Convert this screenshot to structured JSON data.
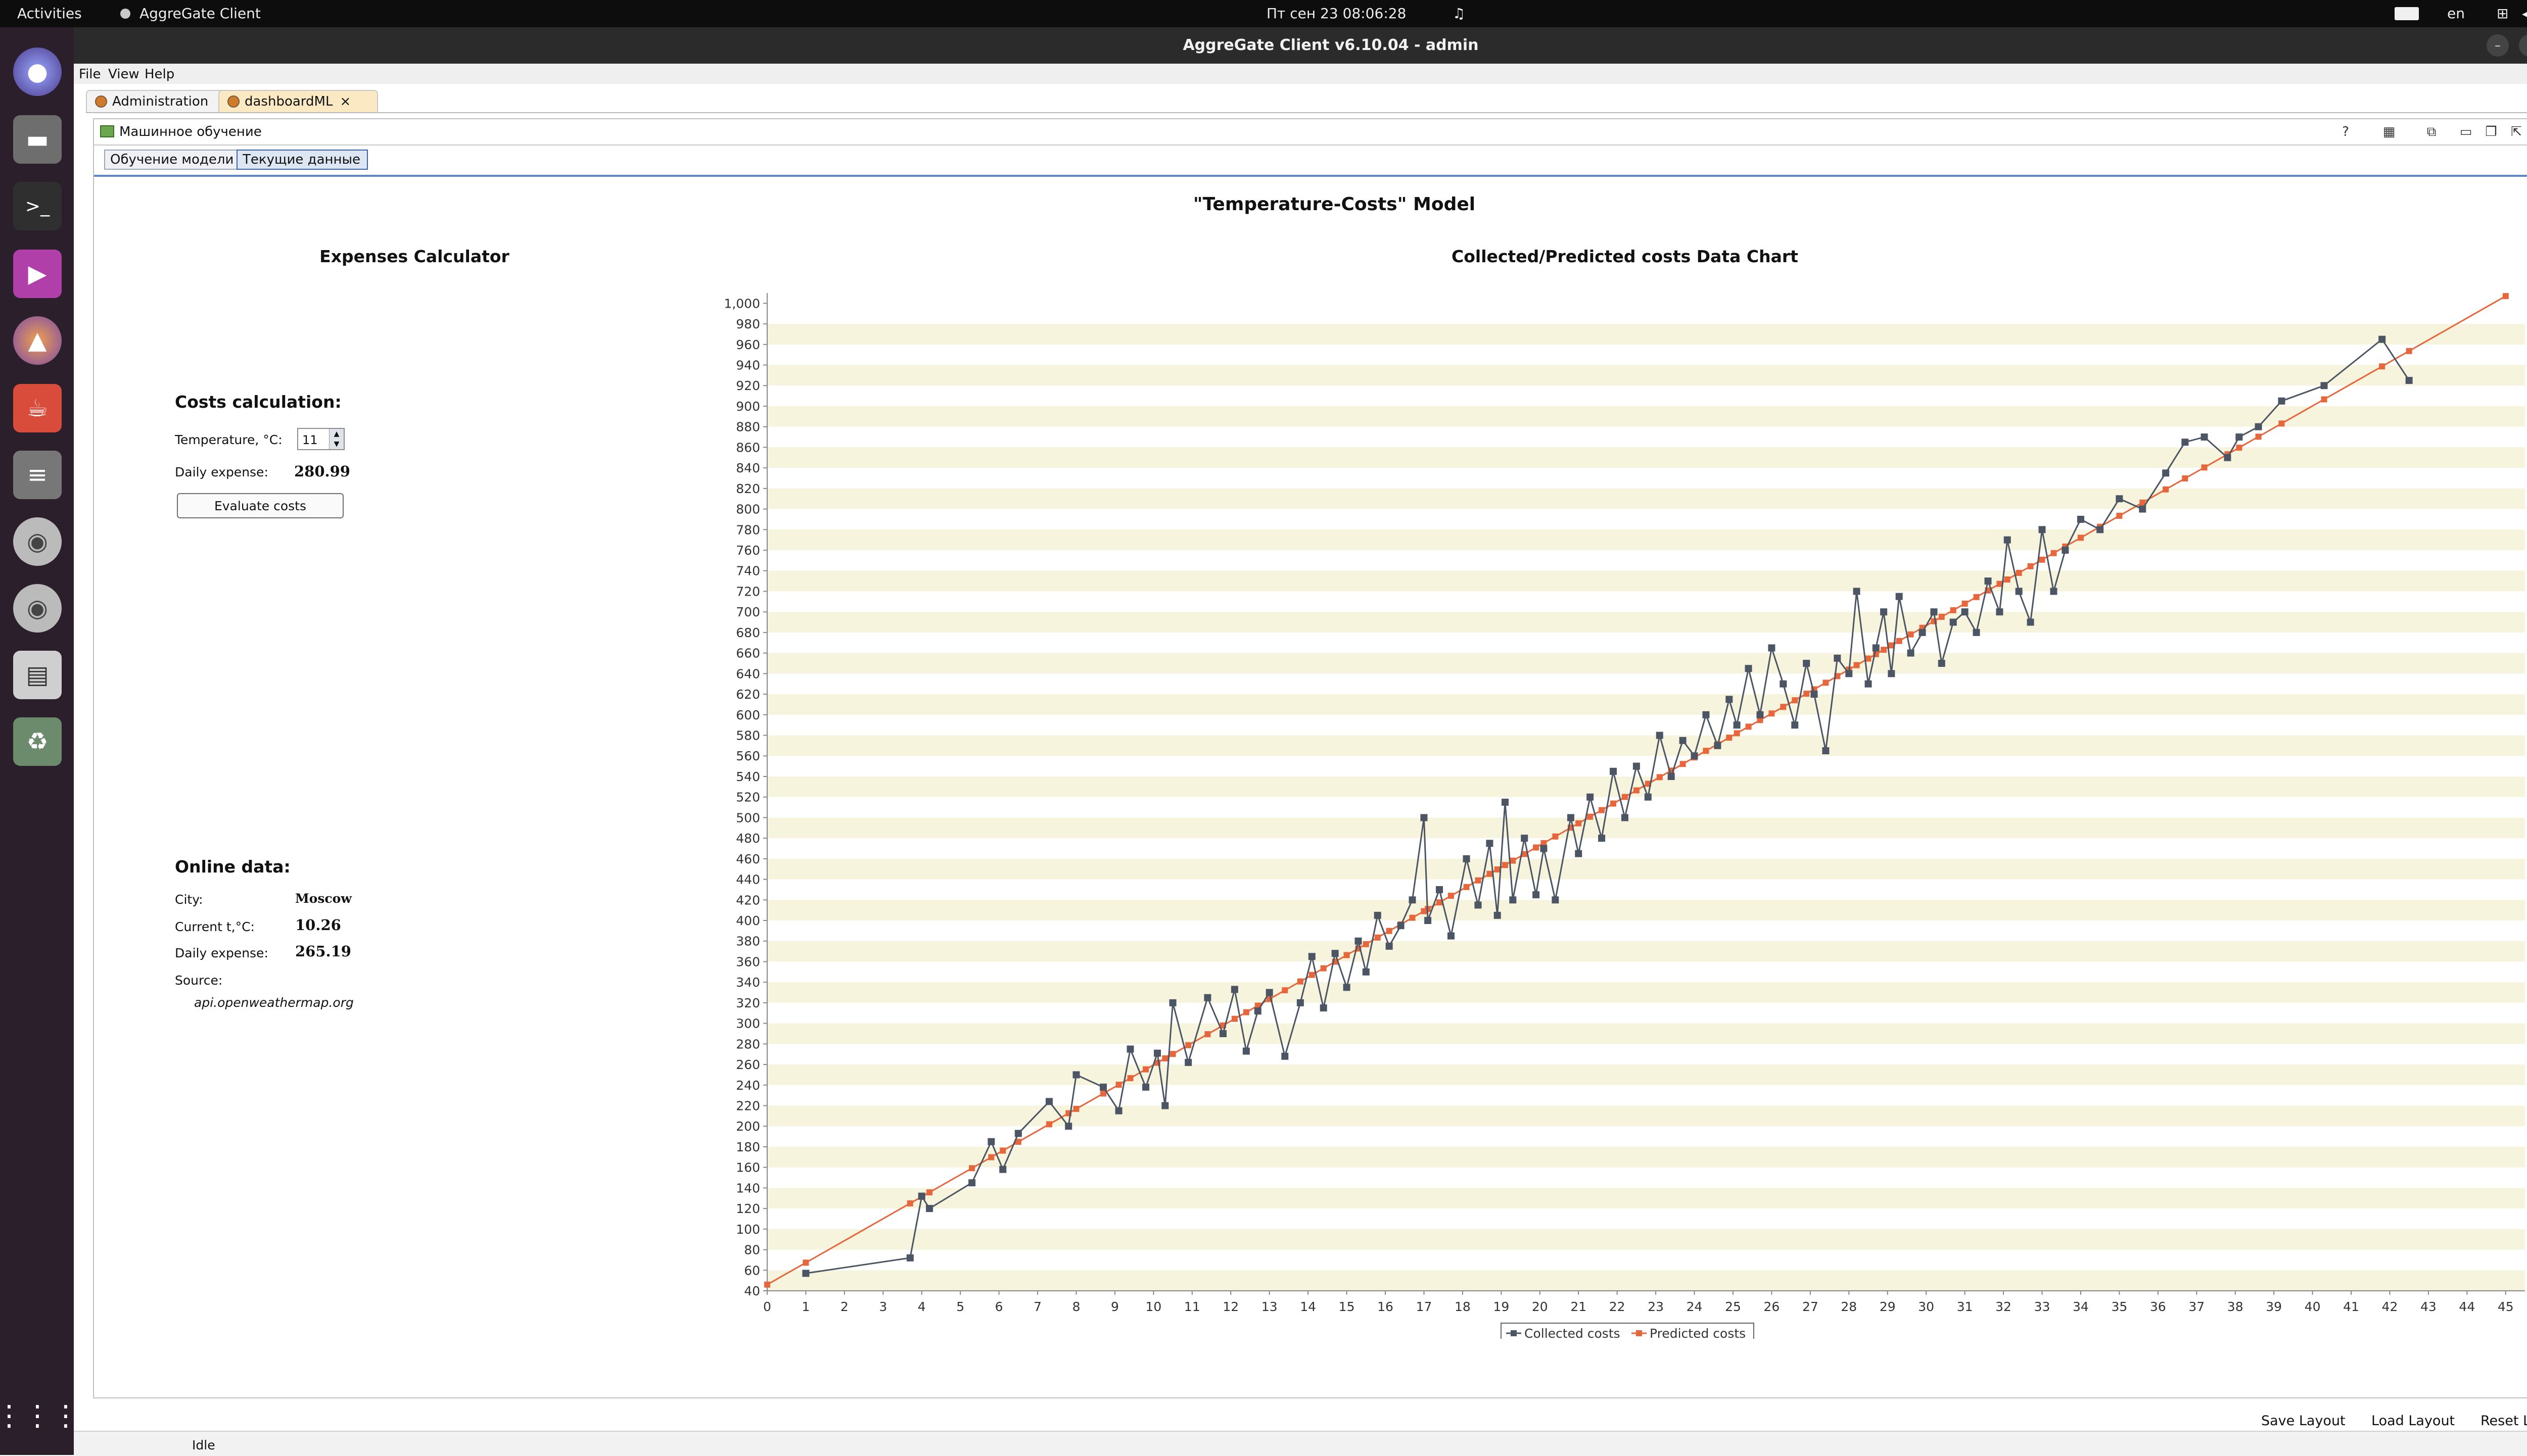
{
  "topbar": {
    "activities": "Activities",
    "app_name": "AggreGate Client",
    "clock": "Пт сен 23  08:06:28",
    "lang": "en",
    "bell": "♫"
  },
  "dock": {
    "icons": [
      "eagle-browser",
      "files",
      "terminal",
      "video",
      "aggregate",
      "java",
      "text",
      "cd",
      "cd",
      "floppy",
      "trash",
      "apps"
    ]
  },
  "window": {
    "title": "AggreGate Client v6.10.04 - admin"
  },
  "menu": {
    "file": "File",
    "view": "View",
    "help": "Help"
  },
  "doc_tabs": {
    "administration": "Administration",
    "dashboard": "dashboardML",
    "close": "×"
  },
  "panel": {
    "title": "Машинное обучение",
    "help": "?",
    "close": "×",
    "subtabs": {
      "train": "Обучение модели",
      "current": "Текущие данные"
    }
  },
  "model_title": "\"Temperature-Costs\" Model",
  "calculator": {
    "heading": "Expenses Calculator",
    "section": "Costs calculation:",
    "temp_label": "Temperature, °C:",
    "temp_value": "11",
    "expense_label": "Daily expense:",
    "expense_value": "280.99",
    "button": "Evaluate costs"
  },
  "online": {
    "section": "Online data:",
    "city_label": "City:",
    "city_value": "Moscow",
    "temp_label": "Current t,°C:",
    "temp_value": "10.26",
    "expense_label": "Daily expense:",
    "expense_value": "265.19",
    "source_label": "Source:",
    "source_value": "api.openweathermap.org"
  },
  "chart_data": {
    "type": "line",
    "title": "Collected/Predicted costs Data Chart",
    "xlim": [
      0,
      45.5
    ],
    "ylim": [
      40,
      1010
    ],
    "x_ticks": [
      0,
      1,
      2,
      3,
      4,
      5,
      6,
      7,
      8,
      9,
      10,
      11,
      12,
      13,
      14,
      15,
      16,
      17,
      18,
      19,
      20,
      21,
      22,
      23,
      24,
      25,
      26,
      27,
      28,
      29,
      30,
      31,
      32,
      33,
      34,
      35,
      36,
      37,
      38,
      39,
      40,
      41,
      42,
      43,
      44,
      45
    ],
    "y_ticks": [
      40,
      60,
      80,
      100,
      120,
      140,
      160,
      180,
      200,
      220,
      240,
      260,
      280,
      300,
      320,
      340,
      360,
      380,
      400,
      420,
      440,
      460,
      480,
      500,
      520,
      540,
      560,
      580,
      600,
      620,
      640,
      660,
      680,
      700,
      720,
      740,
      760,
      780,
      800,
      820,
      840,
      860,
      880,
      900,
      920,
      940,
      960,
      980,
      1000
    ],
    "y_tick_labels": [
      "40",
      "60",
      "80",
      "100",
      "120",
      "140",
      "160",
      "180",
      "200",
      "220",
      "240",
      "260",
      "280",
      "300",
      "320",
      "340",
      "360",
      "380",
      "400",
      "420",
      "440",
      "460",
      "480",
      "500",
      "520",
      "540",
      "560",
      "580",
      "600",
      "620",
      "640",
      "660",
      "680",
      "700",
      "720",
      "740",
      "760",
      "780",
      "800",
      "820",
      "840",
      "860",
      "880",
      "900",
      "920",
      "940",
      "960",
      "980",
      "1,000"
    ],
    "legend": [
      "Collected costs",
      "Predicted costs"
    ],
    "series": [
      {
        "name": "Collected costs",
        "color": "#4b5563",
        "points": [
          [
            1,
            57
          ],
          [
            3.7,
            72
          ],
          [
            4,
            132
          ],
          [
            4.2,
            120
          ],
          [
            5.3,
            145
          ],
          [
            5.8,
            185
          ],
          [
            6.1,
            158
          ],
          [
            6.5,
            193
          ],
          [
            7.3,
            224
          ],
          [
            7.8,
            200
          ],
          [
            8,
            250
          ],
          [
            8.7,
            238
          ],
          [
            9.1,
            215
          ],
          [
            9.4,
            275
          ],
          [
            9.8,
            238
          ],
          [
            10.1,
            271
          ],
          [
            10.3,
            220
          ],
          [
            10.5,
            320
          ],
          [
            10.9,
            262
          ],
          [
            11.4,
            325
          ],
          [
            11.8,
            290
          ],
          [
            12.1,
            333
          ],
          [
            12.4,
            273
          ],
          [
            12.7,
            312
          ],
          [
            13,
            330
          ],
          [
            13.4,
            268
          ],
          [
            13.8,
            320
          ],
          [
            14.1,
            365
          ],
          [
            14.4,
            315
          ],
          [
            14.7,
            368
          ],
          [
            15,
            335
          ],
          [
            15.3,
            380
          ],
          [
            15.5,
            350
          ],
          [
            15.8,
            405
          ],
          [
            16.1,
            375
          ],
          [
            16.4,
            395
          ],
          [
            16.7,
            420
          ],
          [
            17,
            500
          ],
          [
            17.1,
            400
          ],
          [
            17.4,
            430
          ],
          [
            17.7,
            385
          ],
          [
            18.1,
            460
          ],
          [
            18.4,
            415
          ],
          [
            18.7,
            475
          ],
          [
            18.9,
            405
          ],
          [
            19.1,
            515
          ],
          [
            19.3,
            420
          ],
          [
            19.6,
            480
          ],
          [
            19.9,
            425
          ],
          [
            20.1,
            470
          ],
          [
            20.4,
            420
          ],
          [
            20.8,
            500
          ],
          [
            21,
            465
          ],
          [
            21.3,
            520
          ],
          [
            21.6,
            480
          ],
          [
            21.9,
            545
          ],
          [
            22.2,
            500
          ],
          [
            22.5,
            550
          ],
          [
            22.8,
            520
          ],
          [
            23.1,
            580
          ],
          [
            23.4,
            540
          ],
          [
            23.7,
            575
          ],
          [
            24,
            560
          ],
          [
            24.3,
            600
          ],
          [
            24.6,
            570
          ],
          [
            24.9,
            615
          ],
          [
            25.1,
            590
          ],
          [
            25.4,
            645
          ],
          [
            25.7,
            600
          ],
          [
            26,
            665
          ],
          [
            26.3,
            630
          ],
          [
            26.6,
            590
          ],
          [
            26.9,
            650
          ],
          [
            27.1,
            620
          ],
          [
            27.4,
            565
          ],
          [
            27.7,
            655
          ],
          [
            28,
            640
          ],
          [
            28.2,
            720
          ],
          [
            28.5,
            630
          ],
          [
            28.7,
            665
          ],
          [
            28.9,
            700
          ],
          [
            29.1,
            640
          ],
          [
            29.3,
            715
          ],
          [
            29.6,
            660
          ],
          [
            29.9,
            680
          ],
          [
            30.2,
            700
          ],
          [
            30.4,
            650
          ],
          [
            30.7,
            690
          ],
          [
            31,
            700
          ],
          [
            31.3,
            680
          ],
          [
            31.6,
            730
          ],
          [
            31.9,
            700
          ],
          [
            32.1,
            770
          ],
          [
            32.4,
            720
          ],
          [
            32.7,
            690
          ],
          [
            33,
            780
          ],
          [
            33.3,
            720
          ],
          [
            33.6,
            760
          ],
          [
            34,
            790
          ],
          [
            34.5,
            780
          ],
          [
            35,
            810
          ],
          [
            35.6,
            800
          ],
          [
            36.2,
            835
          ],
          [
            36.7,
            865
          ],
          [
            37.2,
            870
          ],
          [
            37.8,
            850
          ],
          [
            38.1,
            870
          ],
          [
            38.6,
            880
          ],
          [
            39.2,
            905
          ],
          [
            40.3,
            920
          ],
          [
            41.8,
            965
          ],
          [
            42.5,
            925
          ]
        ]
      },
      {
        "name": "Predicted costs",
        "color": "#e8663c",
        "points": [
          [
            0,
            46
          ],
          [
            45,
            1007
          ]
        ]
      }
    ]
  },
  "bottom": {
    "save": "Save Layout",
    "load": "Load Layout",
    "reset": "Reset Layout",
    "status": "Idle"
  }
}
